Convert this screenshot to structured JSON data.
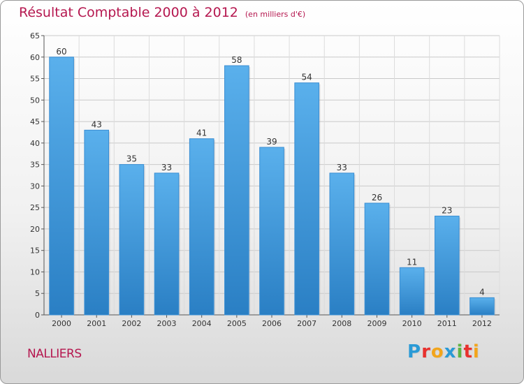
{
  "header": {
    "title": "Résultat Comptable 2000 à 2012",
    "unit": "(en milliers d'€)"
  },
  "footer": {
    "commune": "NALLIERS",
    "brand": [
      "P",
      "r",
      "o",
      "x",
      "i",
      "t",
      "i"
    ],
    "brand_colors": [
      "#2a9ad6",
      "#e8312e",
      "#f2a51c",
      "#2a9ad6",
      "#5fb443",
      "#e8312e",
      "#f2a51c"
    ]
  },
  "chart_data": {
    "type": "bar",
    "categories": [
      "2000",
      "2001",
      "2002",
      "2003",
      "2004",
      "2005",
      "2006",
      "2007",
      "2008",
      "2009",
      "2010",
      "2011",
      "2012"
    ],
    "values": [
      60,
      43,
      35,
      33,
      41,
      58,
      39,
      54,
      33,
      26,
      11,
      23,
      4
    ],
    "ylim": [
      0,
      65
    ],
    "yticks": [
      0,
      5,
      10,
      15,
      20,
      25,
      30,
      35,
      40,
      45,
      50,
      55,
      60,
      65
    ],
    "grid": true,
    "bar_color": "#4ea6e6"
  }
}
